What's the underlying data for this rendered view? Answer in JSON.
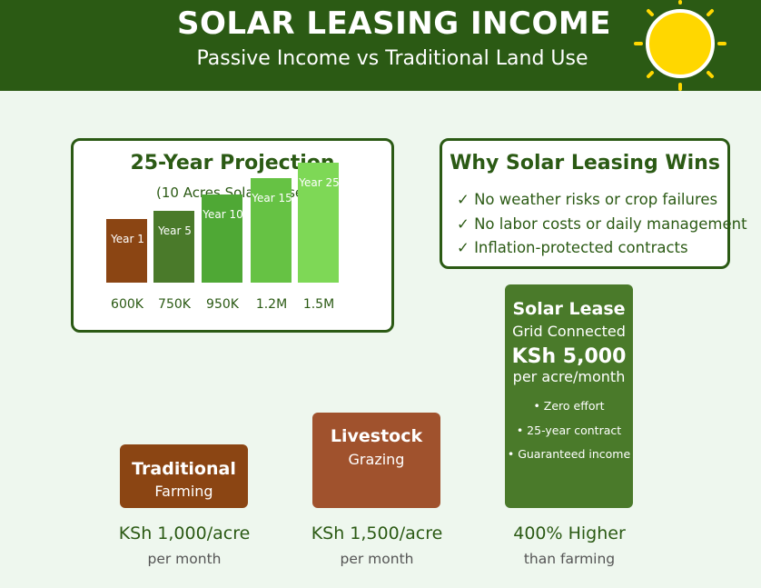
{
  "header": {
    "title": "SOLAR LEASING INCOME",
    "subtitle": "Passive Income vs Traditional Land Use",
    "sun_icon": "sun-icon"
  },
  "projection": {
    "title": "25-Year Projection",
    "subtitle": "(10 Acres Solar Lease)",
    "bars": [
      {
        "label": "Year 1",
        "value": "600K"
      },
      {
        "label": "Year 5",
        "value": "750K"
      },
      {
        "label": "Year 10",
        "value": "950K"
      },
      {
        "label": "Year 15",
        "value": "1.2M"
      },
      {
        "label": "Year 25",
        "value": "1.5M"
      }
    ],
    "bar_colors": [
      "#8b4513",
      "#4a7a2a",
      "#4fa835",
      "#66c244",
      "#7ed856"
    ]
  },
  "why": {
    "title": "Why Solar Leasing Wins",
    "items": [
      "✓ No weather risks or crop failures",
      "✓ No labor costs or daily management",
      "✓ Inflation-protected contracts"
    ]
  },
  "comparison": [
    {
      "title": "Traditional",
      "sub": "Farming",
      "amount": "KSh 1,000/acre",
      "note": "per month",
      "color": "#8b4513"
    },
    {
      "title": "Livestock",
      "sub": "Grazing",
      "amount": "KSh 1,500/acre",
      "note": "per month",
      "color": "#a0522d"
    },
    {
      "title": "Solar Lease",
      "sub": "Grid Connected",
      "price": "KSh 5,000",
      "per": "per acre/month",
      "features": [
        "• Zero effort",
        "• 25-year contract",
        "• Guaranteed income"
      ],
      "amount": "400% Higher",
      "note": "than farming",
      "color": "#4a7a2a"
    }
  ],
  "colors": {
    "primary": "#2b5a14",
    "background": "#eef7ee",
    "sun": "#ffd700"
  }
}
